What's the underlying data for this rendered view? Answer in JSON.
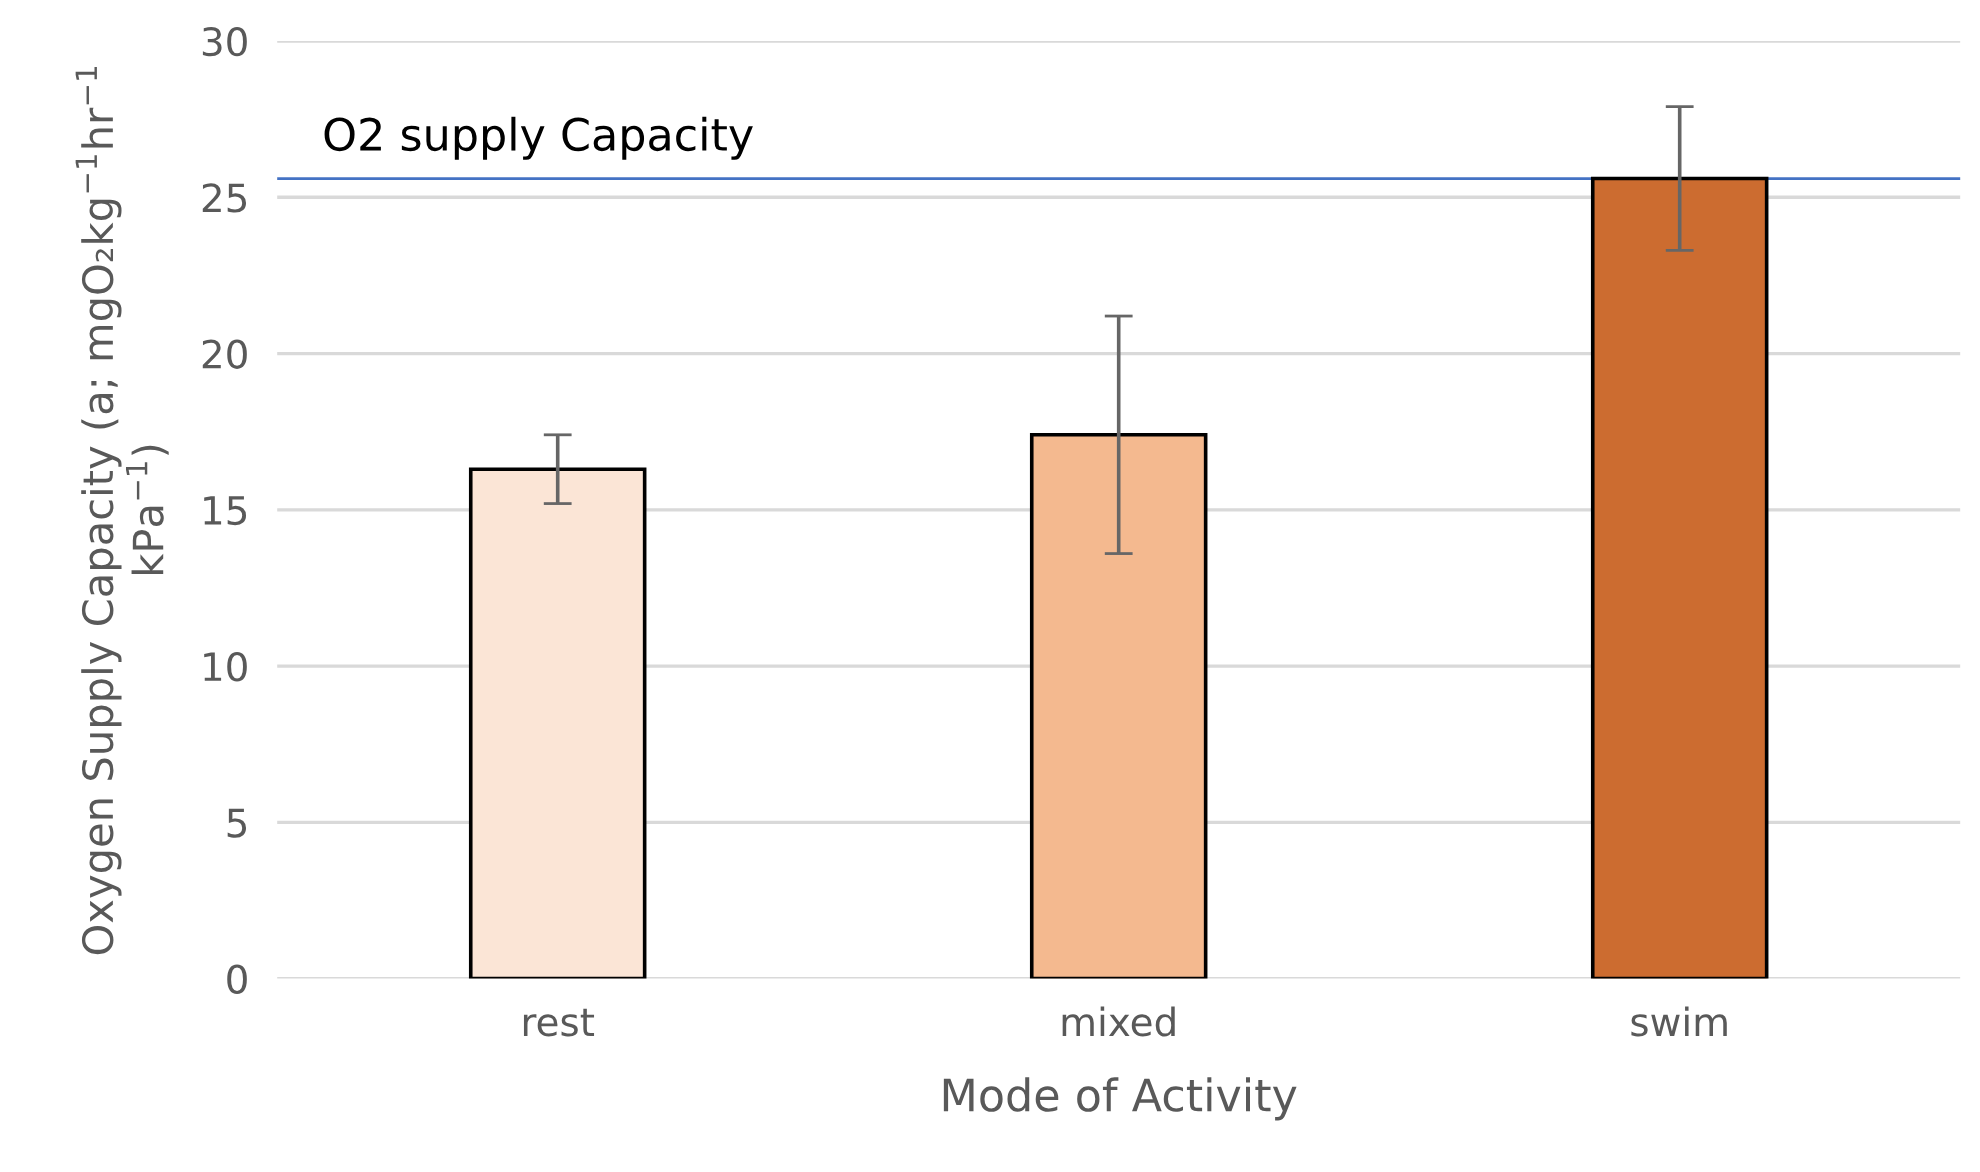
{
  "chart_data": {
    "type": "bar",
    "xlabel": "Mode of Activity",
    "ylabel": "Oxygen Supply Capacity (a; mgO₂kg$^{−1}$hr$^{−1}$\nkPa$^{−1}$)",
    "categories": [
      "rest",
      "mixed",
      "swim"
    ],
    "values": [
      16.3,
      17.4,
      25.6
    ],
    "errors": [
      1.1,
      3.8,
      2.3
    ],
    "colors": [
      "#fbe5d6",
      "#f4b98f",
      "#cc6c30"
    ],
    "ylim": [
      0,
      30
    ],
    "yticks": [
      0,
      5,
      10,
      15,
      20,
      25,
      30
    ],
    "grid": "y",
    "ref_lines": [
      {
        "axis": "y",
        "value": 25.6,
        "label": "O2 supply Capacity",
        "color": "#4472c4"
      }
    ]
  }
}
